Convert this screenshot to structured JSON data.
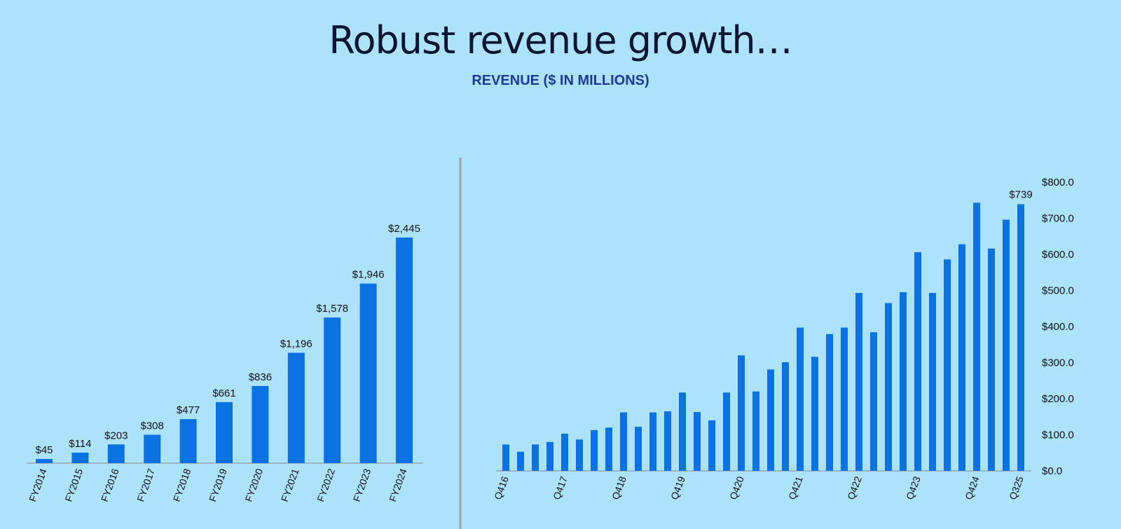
{
  "header": {
    "title": "Robust revenue growth…",
    "subtitle": "REVENUE ($ IN MILLIONS)"
  },
  "colors": {
    "background": "#ade2fc",
    "bar": "#0a72e3",
    "divider": "#9aa4ad",
    "axis": "#9aa4ad"
  },
  "chart_data": [
    {
      "type": "bar",
      "categories": [
        "FY2014",
        "FY2015",
        "FY2016",
        "FY2017",
        "FY2018",
        "FY2019",
        "FY2020",
        "FY2021",
        "FY2022",
        "FY2023",
        "FY2024"
      ],
      "values": [
        45,
        114,
        203,
        308,
        477,
        661,
        836,
        1196,
        1578,
        1946,
        2445
      ],
      "data_labels": [
        "$45",
        "$114",
        "$203",
        "$308",
        "$477",
        "$661",
        "$836",
        "$1,196",
        "$1,578",
        "$1,946",
        "$2,445"
      ],
      "ylim": [
        0,
        2445
      ]
    },
    {
      "type": "bar",
      "categories": [
        "Q416",
        "Q117",
        "Q217",
        "Q317",
        "Q417",
        "Q118",
        "Q218",
        "Q318",
        "Q418",
        "Q119",
        "Q219",
        "Q319",
        "Q419",
        "Q120",
        "Q220",
        "Q320",
        "Q420",
        "Q121",
        "Q221",
        "Q321",
        "Q421",
        "Q122",
        "Q222",
        "Q322",
        "Q422",
        "Q123",
        "Q223",
        "Q323",
        "Q423",
        "Q124",
        "Q224",
        "Q324",
        "Q424",
        "Q125",
        "Q225",
        "Q325"
      ],
      "visible_tick_labels": [
        "Q416",
        "Q417",
        "Q418",
        "Q419",
        "Q420",
        "Q421",
        "Q422",
        "Q423",
        "Q424",
        "Q325"
      ],
      "values": [
        73,
        53,
        73,
        80,
        103,
        87,
        113,
        120,
        162,
        122,
        162,
        165,
        217,
        163,
        140,
        217,
        320,
        220,
        281,
        301,
        397,
        316,
        379,
        397,
        493,
        384,
        465,
        495,
        606,
        493,
        586,
        628,
        743,
        616,
        696,
        739
      ],
      "data_labels": [
        {
          "category": "Q325",
          "label": "$739"
        }
      ],
      "yticks": [
        "$0.0",
        "$100.0",
        "$200.0",
        "$300.0",
        "$400.0",
        "$500.0",
        "$600.0",
        "$700.0",
        "$800.0"
      ],
      "ylim": [
        0,
        800
      ],
      "y_axis_position": "right"
    }
  ]
}
